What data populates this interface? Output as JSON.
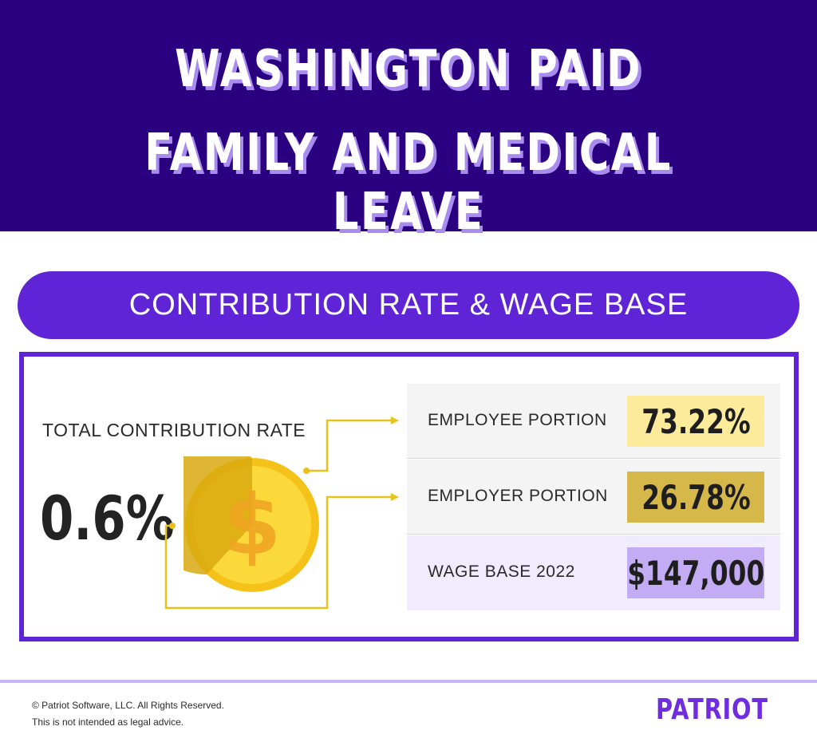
{
  "header": {
    "title_line1": "WASHINGTON PAID",
    "title_line2": "FAMILY AND MEDICAL LEAVE"
  },
  "banner": {
    "label": "CONTRIBUTION RATE & WAGE BASE"
  },
  "total": {
    "label": "TOTAL CONTRIBUTION RATE",
    "value": "0.6%",
    "coin_symbol": "$",
    "coin_icon": "dollar-coin-icon"
  },
  "rows": [
    {
      "label": "EMPLOYEE PORTION",
      "value": "73.22%",
      "value_bg": "#fbeb9b"
    },
    {
      "label": "EMPLOYER PORTION",
      "value": "26.78%",
      "value_bg": "#d6b84a"
    },
    {
      "label": "WAGE BASE 2022",
      "value": "$147,000",
      "value_bg": "#c4acf5"
    }
  ],
  "footer": {
    "copyright": "© Patriot Software, LLC. All Rights Reserved.",
    "disclaimer": "This is not intended as legal advice.",
    "logo": "PATRIOT"
  },
  "colors": {
    "header_bg": "#2b0080",
    "accent_purple": "#5e24d6",
    "title_shadow": "#a98cf0",
    "coin_gold": "#f5c21a",
    "coin_dark": "#d9a90f",
    "connector": "#e8c21c",
    "logo": "#6f2ce0"
  }
}
